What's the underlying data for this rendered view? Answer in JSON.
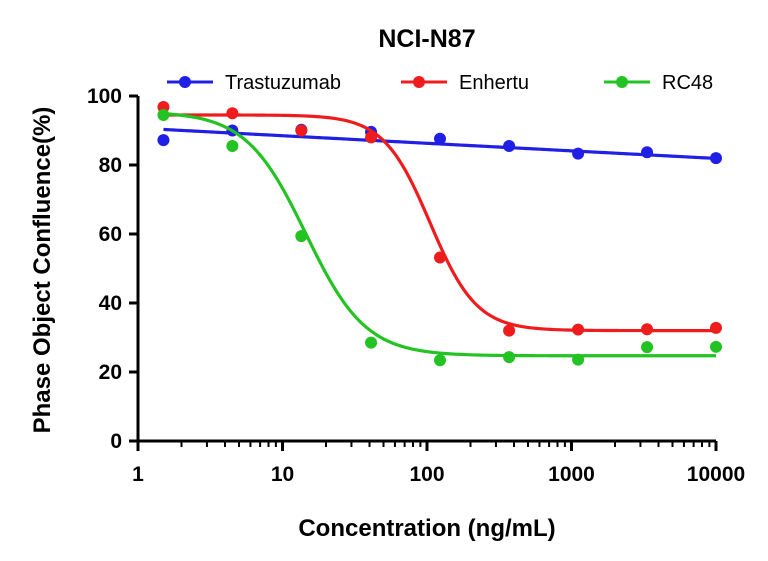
{
  "chart_data": {
    "type": "scatter",
    "title": "NCI-N87",
    "xlabel": "Concentration (ng/mL)",
    "ylabel": "Phase Object Confluence(%)",
    "xscale": "log",
    "xlim": [
      1,
      10000
    ],
    "ylim": [
      0,
      100
    ],
    "xticks": [
      "1",
      "10",
      "100",
      "1000",
      "10000"
    ],
    "yticks": [
      "0",
      "20",
      "40",
      "60",
      "80",
      "100"
    ],
    "legend_position": "top",
    "series": [
      {
        "name": "Trastuzumab",
        "color": "#1f1fe6",
        "x": [
          1.5,
          4.5,
          13.5,
          41,
          123,
          370,
          1111,
          3333,
          10000
        ],
        "y": [
          87.2,
          90.0,
          90.2,
          89.6,
          87.6,
          85.5,
          83.3,
          83.7,
          82.0
        ],
        "fit": {
          "model": "linear-log",
          "top": 90.3,
          "bottom": 81.9
        }
      },
      {
        "name": "Enhertu",
        "color": "#ee1c1c",
        "x": [
          1.5,
          4.5,
          13.5,
          41,
          123,
          370,
          1111,
          3333,
          10000
        ],
        "y": [
          96.8,
          95.0,
          90.0,
          88.0,
          53.2,
          32.0,
          32.3,
          32.4,
          32.8
        ],
        "fit": {
          "model": "4PL",
          "top": 94.5,
          "bottom": 32.0,
          "ec50": 105,
          "hill": 2.7
        }
      },
      {
        "name": "RC48",
        "color": "#22c322",
        "x": [
          1.5,
          4.5,
          13.5,
          41,
          123,
          370,
          1111,
          3333,
          10000
        ],
        "y": [
          94.5,
          85.5,
          59.4,
          28.5,
          23.4,
          24.3,
          23.6,
          27.2,
          27.3
        ],
        "fit": {
          "model": "4PL",
          "top": 95.5,
          "bottom": 24.7,
          "ec50": 14.5,
          "hill": 2.1
        }
      }
    ]
  }
}
